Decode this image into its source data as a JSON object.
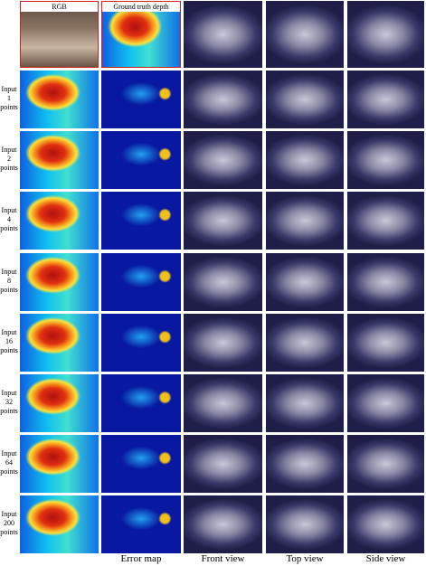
{
  "header": {
    "rgb_label": "RGB",
    "depth_label": "Ground truth depth"
  },
  "rows": [
    "Input 1 points",
    "Input 2 points",
    "Input 4 points",
    "Input 8 points",
    "Input 16 points",
    "Input 32 points",
    "Input 64 points",
    "Input 200 points"
  ],
  "captions": [
    "Error map",
    "Front view",
    "Top view",
    "Side view"
  ]
}
